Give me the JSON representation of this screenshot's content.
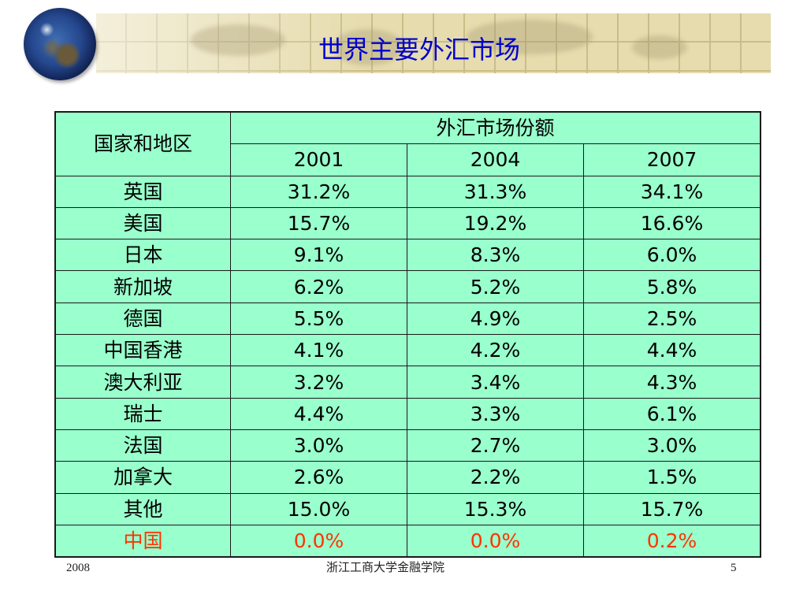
{
  "slide": {
    "title": "世界主要外汇市场"
  },
  "table": {
    "header_region": "国家和地区",
    "header_group": "外汇市场份额",
    "years": [
      "2001",
      "2004",
      "2007"
    ],
    "rows": [
      {
        "region": "英国",
        "values": [
          "31.2%",
          "31.3%",
          "34.1%"
        ]
      },
      {
        "region": "美国",
        "values": [
          "15.7%",
          "19.2%",
          "16.6%"
        ]
      },
      {
        "region": "日本",
        "values": [
          "9.1%",
          "8.3%",
          "6.0%"
        ]
      },
      {
        "region": "新加坡",
        "values": [
          "6.2%",
          "5.2%",
          "5.8%"
        ]
      },
      {
        "region": "德国",
        "values": [
          "5.5%",
          "4.9%",
          "2.5%"
        ]
      },
      {
        "region": "中国香港",
        "values": [
          "4.1%",
          "4.2%",
          "4.4%"
        ]
      },
      {
        "region": "澳大利亚",
        "values": [
          "3.2%",
          "3.4%",
          "4.3%"
        ]
      },
      {
        "region": "瑞士",
        "values": [
          "4.4%",
          "3.3%",
          "6.1%"
        ]
      },
      {
        "region": "法国",
        "values": [
          "3.0%",
          "2.7%",
          "3.0%"
        ]
      },
      {
        "region": "加拿大",
        "values": [
          "2.6%",
          "2.2%",
          "1.5%"
        ]
      },
      {
        "region": "其他",
        "values": [
          "15.0%",
          "15.3%",
          "15.7%"
        ]
      },
      {
        "region": "中国",
        "values": [
          "0.0%",
          "0.0%",
          "0.2%"
        ]
      }
    ],
    "colors": {
      "table_background": "#99ffcc",
      "highlight_text": "#ff3300",
      "title_text": "#0000cc"
    }
  },
  "footer": {
    "year": "2008",
    "institution": "浙江工商大学金融学院",
    "page_number": "5"
  },
  "icons": {
    "logo": "globe-icon"
  }
}
